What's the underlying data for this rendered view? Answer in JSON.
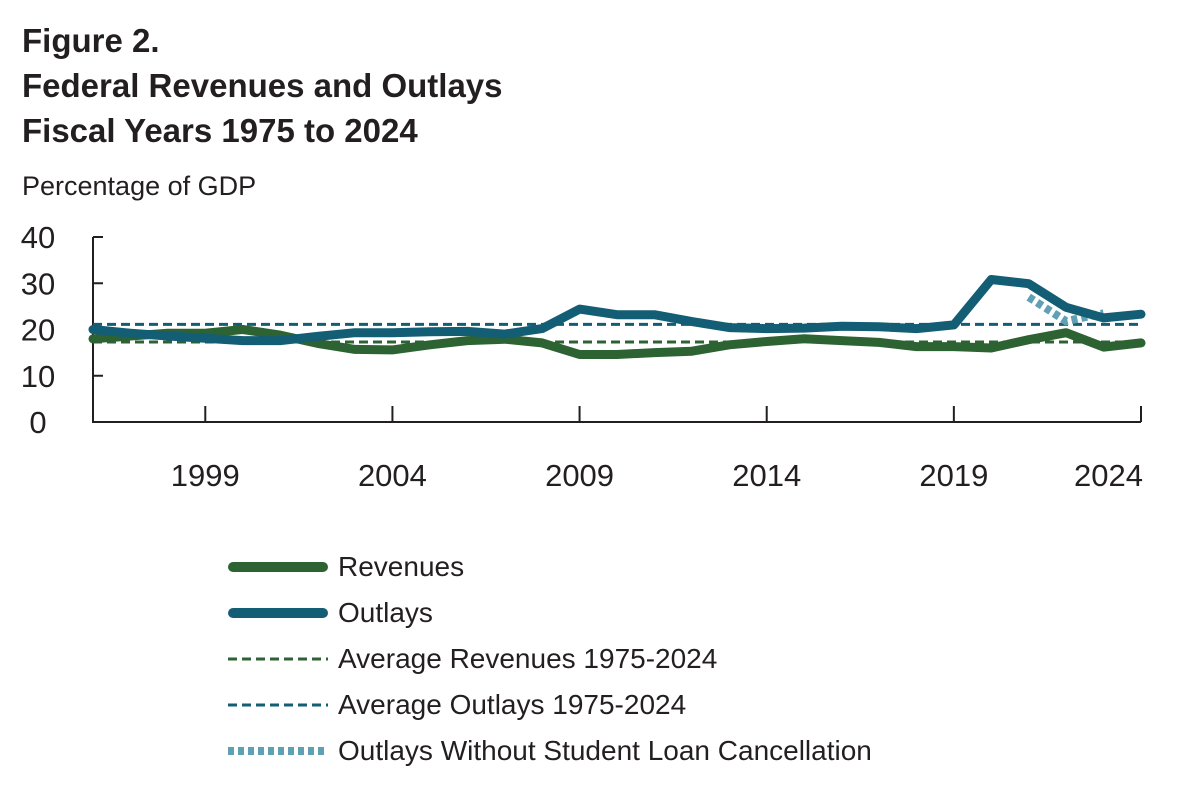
{
  "title": [
    "Figure 2.",
    "Federal Revenues and Outlays",
    "Fiscal Years 1975 to 2024"
  ],
  "colors": {
    "revenues": "#2d6333",
    "outlays": "#135d75",
    "avg_revenues": "#2d6333",
    "avg_outlays": "#135d75",
    "outlays_no_slc": "#5fa0b4",
    "axis": "#231f20"
  },
  "chart_data": {
    "type": "line",
    "title": "Federal Revenues and Outlays",
    "ylabel": "Percentage of GDP",
    "xlabel": "",
    "xlim": [
      1996,
      2024
    ],
    "ylim": [
      0,
      40
    ],
    "yticks": [
      0,
      10,
      20,
      30,
      40
    ],
    "xticks": [
      1999,
      2004,
      2009,
      2014,
      2019,
      2024
    ],
    "grid": false,
    "legend_position": "bottom",
    "x": [
      1996,
      1997,
      1998,
      1999,
      2000,
      2001,
      2002,
      2003,
      2004,
      2005,
      2006,
      2007,
      2008,
      2009,
      2010,
      2011,
      2012,
      2013,
      2014,
      2015,
      2016,
      2017,
      2018,
      2019,
      2020,
      2021,
      2022,
      2023,
      2024
    ],
    "series": [
      {
        "name": "Revenues",
        "style": "solid-thick",
        "values": [
          18.0,
          18.6,
          19.2,
          19.2,
          20.0,
          18.8,
          17.0,
          15.7,
          15.6,
          16.7,
          17.6,
          17.9,
          17.1,
          14.6,
          14.6,
          15.0,
          15.3,
          16.7,
          17.4,
          18.0,
          17.6,
          17.2,
          16.3,
          16.3,
          16.0,
          17.8,
          19.3,
          16.2,
          17.1
        ]
      },
      {
        "name": "Outlays",
        "style": "solid-thick",
        "values": [
          20.0,
          19.2,
          18.6,
          18.1,
          17.6,
          17.6,
          18.5,
          19.3,
          19.3,
          19.5,
          19.6,
          19.0,
          20.2,
          24.4,
          23.2,
          23.2,
          21.7,
          20.4,
          20.2,
          20.3,
          20.7,
          20.6,
          20.2,
          21.0,
          30.8,
          29.9,
          24.8,
          22.5,
          23.3
        ]
      },
      {
        "name": "Average Revenues 1975-2024",
        "style": "dashed",
        "constant": 17.3
      },
      {
        "name": "Average Outlays 1975-2024",
        "style": "dashed",
        "constant": 21.1
      },
      {
        "name": "Outlays Without Student Loan Cancellation",
        "style": "dotted",
        "x": [
          2021,
          2022,
          2023
        ],
        "values": [
          27.0,
          21.8,
          23.5
        ]
      }
    ]
  }
}
